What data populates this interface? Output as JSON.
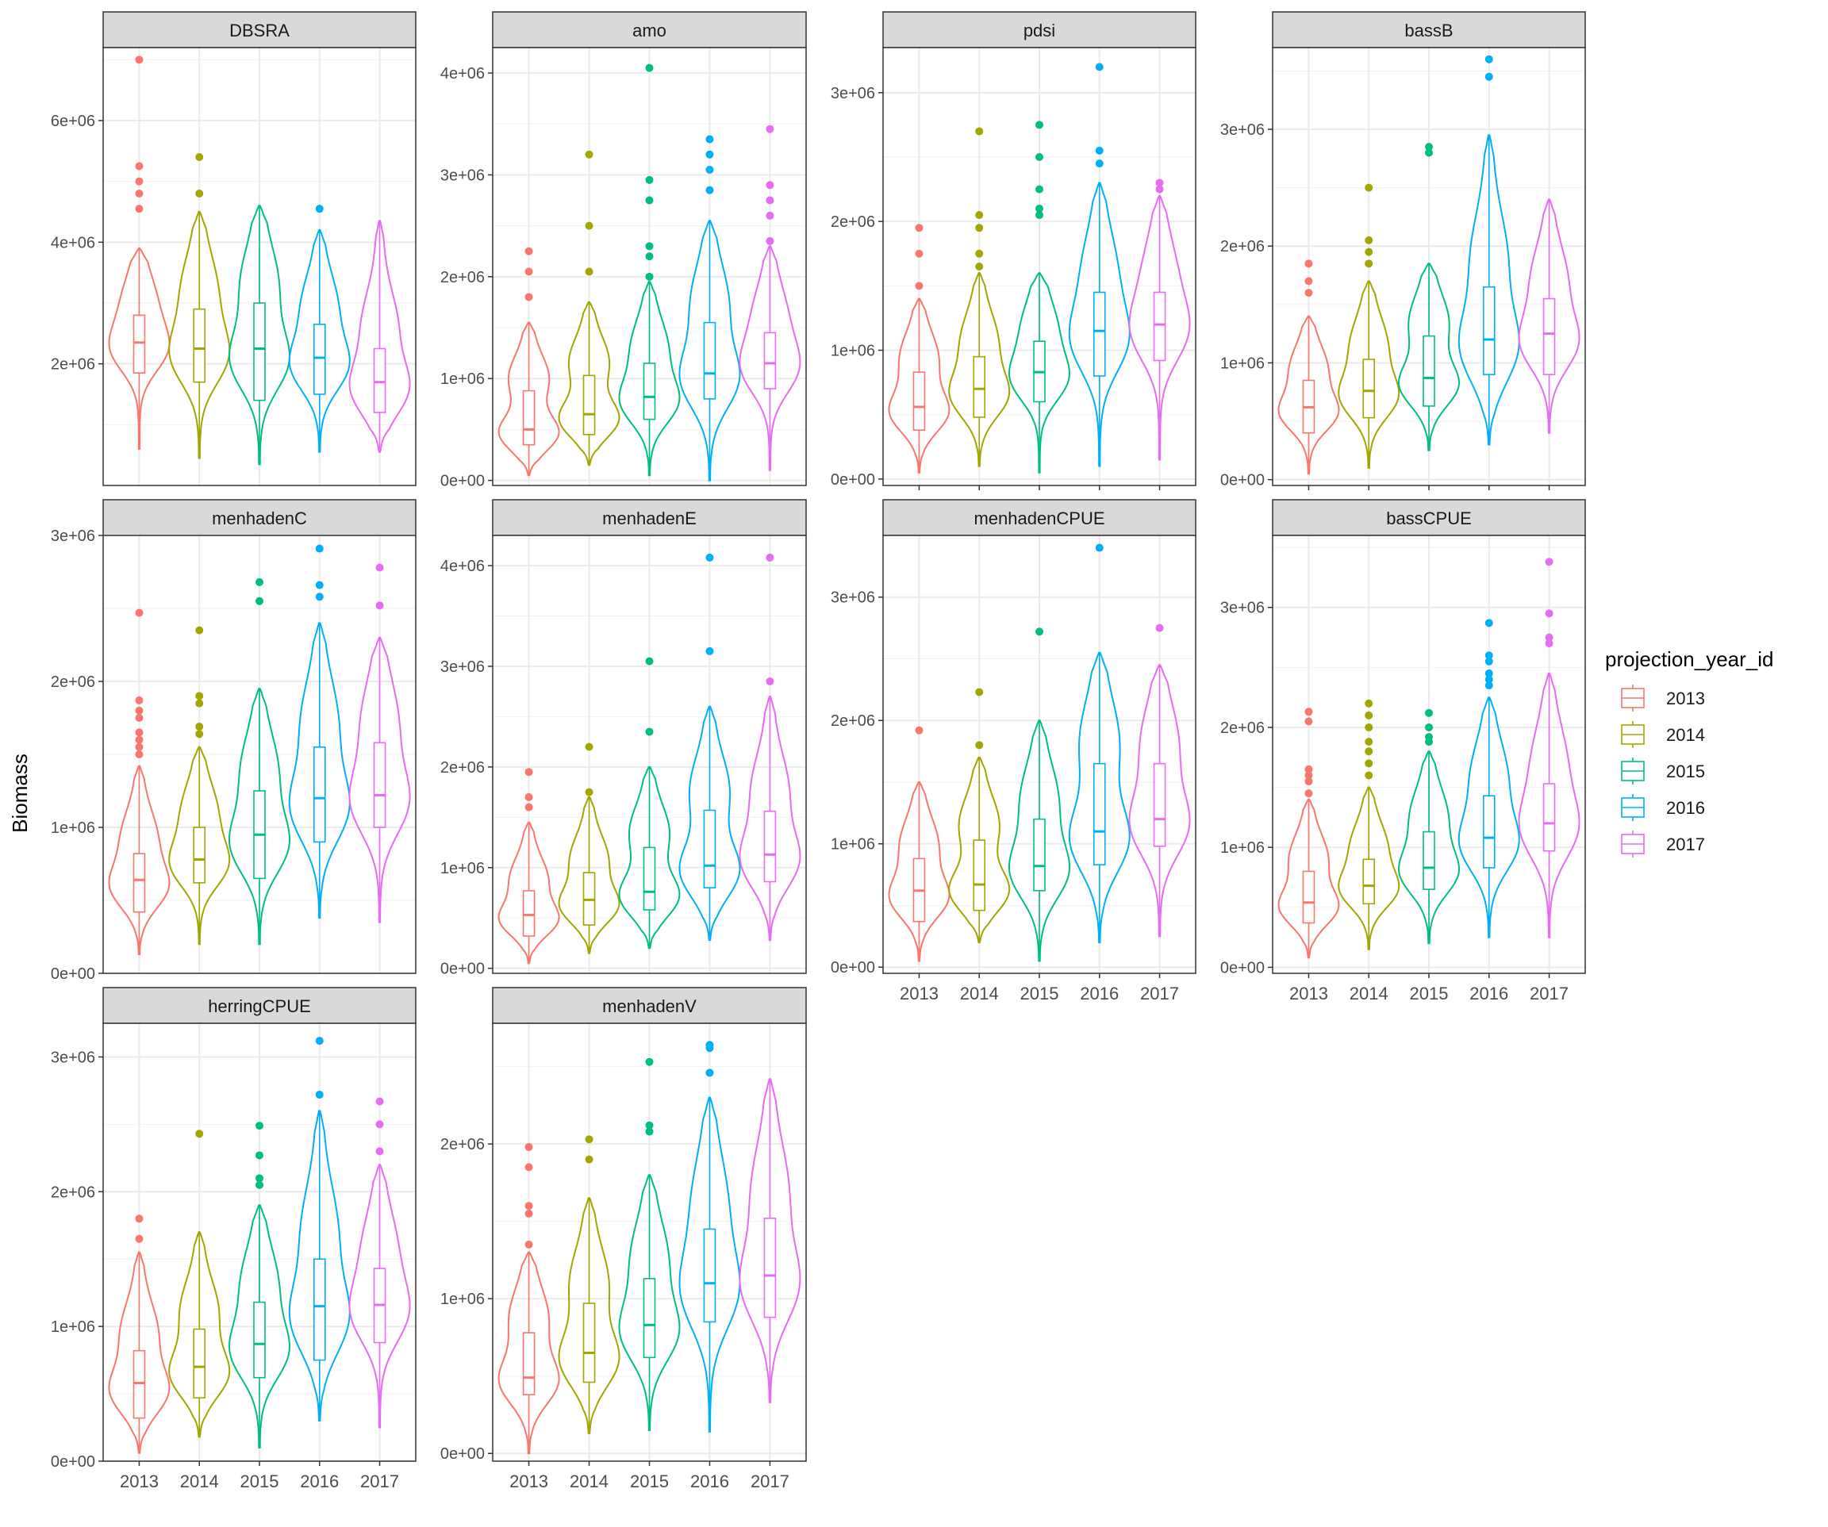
{
  "chart_data": {
    "type": "violin",
    "ylabel": "Biomass",
    "legend": {
      "title": "projection_year_id",
      "placement": "right",
      "entries": [
        "2013",
        "2014",
        "2015",
        "2016",
        "2017"
      ]
    },
    "categories": [
      "2013",
      "2014",
      "2015",
      "2016",
      "2017"
    ],
    "colors": [
      "#F8766D",
      "#A3A500",
      "#00BF7D",
      "#00B0F6",
      "#E76BF3"
    ],
    "grid": true,
    "panels": [
      {
        "name": "DBSRA",
        "ylim": [
          0,
          7200000
        ],
        "yticks": [
          2000000,
          4000000,
          6000000
        ],
        "ytick_labels": [
          "2e+06",
          "4e+06",
          "6e+06"
        ],
        "x_tick_labels_shown": false,
        "series": [
          {
            "year": "2013",
            "min": 600000,
            "q1": 1850000,
            "median": 2350000,
            "q3": 2800000,
            "max": 3900000,
            "outliers": [
              4550000,
              4800000,
              5000000,
              5250000,
              7000000
            ]
          },
          {
            "year": "2014",
            "min": 450000,
            "q1": 1700000,
            "median": 2250000,
            "q3": 2900000,
            "max": 4500000,
            "outliers": [
              4800000,
              5400000
            ]
          },
          {
            "year": "2015",
            "min": 350000,
            "q1": 1400000,
            "median": 2250000,
            "q3": 3000000,
            "max": 4600000,
            "outliers": []
          },
          {
            "year": "2016",
            "min": 550000,
            "q1": 1500000,
            "median": 2100000,
            "q3": 2650000,
            "max": 4200000,
            "outliers": [
              4550000
            ]
          },
          {
            "year": "2017",
            "min": 550000,
            "q1": 1200000,
            "median": 1700000,
            "q3": 2250000,
            "max": 4350000,
            "outliers": []
          }
        ]
      },
      {
        "name": "amo",
        "ylim": [
          -50000,
          4250000
        ],
        "yticks": [
          0,
          1000000,
          2000000,
          3000000,
          4000000
        ],
        "ytick_labels": [
          "0e+00",
          "1e+06",
          "2e+06",
          "3e+06",
          "4e+06"
        ],
        "x_tick_labels_shown": false,
        "series": [
          {
            "year": "2013",
            "min": 50000,
            "q1": 350000,
            "median": 500000,
            "q3": 880000,
            "max": 1550000,
            "outliers": [
              1800000,
              2050000,
              2250000
            ]
          },
          {
            "year": "2014",
            "min": 150000,
            "q1": 450000,
            "median": 650000,
            "q3": 1030000,
            "max": 1750000,
            "outliers": [
              2050000,
              2500000,
              3200000
            ]
          },
          {
            "year": "2015",
            "min": 50000,
            "q1": 600000,
            "median": 820000,
            "q3": 1150000,
            "max": 1950000,
            "outliers": [
              2000000,
              2200000,
              2300000,
              2750000,
              2950000,
              4050000
            ]
          },
          {
            "year": "2016",
            "min": 0,
            "q1": 800000,
            "median": 1050000,
            "q3": 1550000,
            "max": 2550000,
            "outliers": [
              2850000,
              3050000,
              3200000,
              3350000
            ]
          },
          {
            "year": "2017",
            "min": 100000,
            "q1": 900000,
            "median": 1150000,
            "q3": 1450000,
            "max": 2300000,
            "outliers": [
              2350000,
              2600000,
              2750000,
              2900000,
              3450000
            ]
          }
        ]
      },
      {
        "name": "pdsi",
        "ylim": [
          -50000,
          3350000
        ],
        "yticks": [
          0,
          1000000,
          2000000,
          3000000
        ],
        "ytick_labels": [
          "0e+00",
          "1e+06",
          "2e+06",
          "3e+06"
        ],
        "x_tick_labels_shown": true,
        "series": [
          {
            "year": "2013",
            "min": 50000,
            "q1": 380000,
            "median": 560000,
            "q3": 830000,
            "max": 1400000,
            "outliers": [
              1500000,
              1750000,
              1950000
            ]
          },
          {
            "year": "2014",
            "min": 100000,
            "q1": 480000,
            "median": 700000,
            "q3": 950000,
            "max": 1600000,
            "outliers": [
              1650000,
              1750000,
              1950000,
              2050000,
              2700000
            ]
          },
          {
            "year": "2015",
            "min": 50000,
            "q1": 600000,
            "median": 830000,
            "q3": 1070000,
            "max": 1600000,
            "outliers": [
              2050000,
              2100000,
              2250000,
              2500000,
              2750000
            ]
          },
          {
            "year": "2016",
            "min": 100000,
            "q1": 800000,
            "median": 1150000,
            "q3": 1450000,
            "max": 2300000,
            "outliers": [
              2450000,
              2550000,
              3200000
            ]
          },
          {
            "year": "2017",
            "min": 150000,
            "q1": 920000,
            "median": 1200000,
            "q3": 1450000,
            "max": 2200000,
            "outliers": [
              2250000,
              2300000
            ]
          }
        ]
      },
      {
        "name": "bassB",
        "ylim": [
          -50000,
          3700000
        ],
        "yticks": [
          0,
          1000000,
          2000000,
          3000000
        ],
        "ytick_labels": [
          "0e+00",
          "1e+06",
          "2e+06",
          "3e+06"
        ],
        "x_tick_labels_shown": true,
        "series": [
          {
            "year": "2013",
            "min": 50000,
            "q1": 400000,
            "median": 620000,
            "q3": 850000,
            "max": 1400000,
            "outliers": [
              1600000,
              1700000,
              1850000
            ]
          },
          {
            "year": "2014",
            "min": 100000,
            "q1": 530000,
            "median": 760000,
            "q3": 1030000,
            "max": 1700000,
            "outliers": [
              1850000,
              1950000,
              2050000,
              2500000
            ]
          },
          {
            "year": "2015",
            "min": 250000,
            "q1": 630000,
            "median": 870000,
            "q3": 1230000,
            "max": 1850000,
            "outliers": [
              2800000,
              2850000
            ]
          },
          {
            "year": "2016",
            "min": 300000,
            "q1": 900000,
            "median": 1200000,
            "q3": 1650000,
            "max": 2950000,
            "outliers": [
              3450000,
              3600000
            ]
          },
          {
            "year": "2017",
            "min": 400000,
            "q1": 900000,
            "median": 1250000,
            "q3": 1550000,
            "max": 2400000,
            "outliers": []
          }
        ]
      },
      {
        "name": "menhadenC",
        "ylim": [
          0,
          3000000
        ],
        "yticks": [
          0,
          1000000,
          2000000,
          3000000
        ],
        "ytick_labels": [
          "0e+00",
          "1e+06",
          "2e+06",
          "3e+06"
        ],
        "x_tick_labels_shown": false,
        "series": [
          {
            "year": "2013",
            "min": 130000,
            "q1": 420000,
            "median": 640000,
            "q3": 820000,
            "max": 1420000,
            "outliers": [
              1500000,
              1550000,
              1600000,
              1650000,
              1750000,
              1800000,
              1870000,
              2470000
            ]
          },
          {
            "year": "2014",
            "min": 200000,
            "q1": 620000,
            "median": 780000,
            "q3": 1000000,
            "max": 1550000,
            "outliers": [
              1640000,
              1690000,
              1850000,
              1900000,
              2350000
            ]
          },
          {
            "year": "2015",
            "min": 200000,
            "q1": 650000,
            "median": 950000,
            "q3": 1250000,
            "max": 1950000,
            "outliers": [
              2550000,
              2680000
            ]
          },
          {
            "year": "2016",
            "min": 380000,
            "q1": 900000,
            "median": 1200000,
            "q3": 1550000,
            "max": 2400000,
            "outliers": [
              2580000,
              2660000,
              2910000
            ]
          },
          {
            "year": "2017",
            "min": 350000,
            "q1": 1000000,
            "median": 1220000,
            "q3": 1580000,
            "max": 2300000,
            "outliers": [
              2520000,
              2780000
            ]
          }
        ]
      },
      {
        "name": "menhadenE",
        "ylim": [
          -50000,
          4300000
        ],
        "yticks": [
          0,
          1000000,
          2000000,
          3000000,
          4000000
        ],
        "ytick_labels": [
          "0e+00",
          "1e+06",
          "2e+06",
          "3e+06",
          "4e+06"
        ],
        "x_tick_labels_shown": false,
        "series": [
          {
            "year": "2013",
            "min": 50000,
            "q1": 320000,
            "median": 530000,
            "q3": 770000,
            "max": 1450000,
            "outliers": [
              1600000,
              1700000,
              1950000
            ]
          },
          {
            "year": "2014",
            "min": 150000,
            "q1": 430000,
            "median": 680000,
            "q3": 950000,
            "max": 1700000,
            "outliers": [
              1750000,
              2200000
            ]
          },
          {
            "year": "2015",
            "min": 200000,
            "q1": 580000,
            "median": 760000,
            "q3": 1200000,
            "max": 2000000,
            "outliers": [
              2350000,
              3050000
            ]
          },
          {
            "year": "2016",
            "min": 280000,
            "q1": 800000,
            "median": 1020000,
            "q3": 1570000,
            "max": 2600000,
            "outliers": [
              3150000,
              4080000
            ]
          },
          {
            "year": "2017",
            "min": 280000,
            "q1": 860000,
            "median": 1130000,
            "q3": 1560000,
            "max": 2700000,
            "outliers": [
              2850000,
              4080000
            ]
          }
        ]
      },
      {
        "name": "menhadenCPUE",
        "ylim": [
          -50000,
          3500000
        ],
        "yticks": [
          0,
          1000000,
          2000000,
          3000000
        ],
        "ytick_labels": [
          "0e+00",
          "1e+06",
          "2e+06",
          "3e+06"
        ],
        "x_tick_labels_shown": true,
        "series": [
          {
            "year": "2013",
            "min": 50000,
            "q1": 370000,
            "median": 620000,
            "q3": 880000,
            "max": 1500000,
            "outliers": [
              1920000
            ]
          },
          {
            "year": "2014",
            "min": 200000,
            "q1": 460000,
            "median": 670000,
            "q3": 1030000,
            "max": 1700000,
            "outliers": [
              1800000,
              2230000
            ]
          },
          {
            "year": "2015",
            "min": 50000,
            "q1": 620000,
            "median": 820000,
            "q3": 1200000,
            "max": 2000000,
            "outliers": [
              2720000
            ]
          },
          {
            "year": "2016",
            "min": 200000,
            "q1": 830000,
            "median": 1100000,
            "q3": 1650000,
            "max": 2550000,
            "outliers": [
              3400000
            ]
          },
          {
            "year": "2017",
            "min": 250000,
            "q1": 980000,
            "median": 1200000,
            "q3": 1650000,
            "max": 2450000,
            "outliers": [
              2750000
            ]
          }
        ]
      },
      {
        "name": "bassCPUE",
        "ylim": [
          -50000,
          3600000
        ],
        "yticks": [
          0,
          1000000,
          2000000,
          3000000
        ],
        "ytick_labels": [
          "0e+00",
          "1e+06",
          "2e+06",
          "3e+06"
        ],
        "x_tick_labels_shown": true,
        "series": [
          {
            "year": "2013",
            "min": 80000,
            "q1": 370000,
            "median": 540000,
            "q3": 800000,
            "max": 1400000,
            "outliers": [
              1450000,
              1550000,
              1600000,
              1650000,
              2050000,
              2130000
            ]
          },
          {
            "year": "2014",
            "min": 150000,
            "q1": 530000,
            "median": 680000,
            "q3": 900000,
            "max": 1500000,
            "outliers": [
              1600000,
              1700000,
              1800000,
              1880000,
              2000000,
              2100000,
              2200000
            ]
          },
          {
            "year": "2015",
            "min": 200000,
            "q1": 650000,
            "median": 830000,
            "q3": 1130000,
            "max": 1800000,
            "outliers": [
              1880000,
              1920000,
              2000000,
              2120000
            ]
          },
          {
            "year": "2016",
            "min": 250000,
            "q1": 830000,
            "median": 1080000,
            "q3": 1430000,
            "max": 2250000,
            "outliers": [
              2350000,
              2400000,
              2450000,
              2550000,
              2600000,
              2870000
            ]
          },
          {
            "year": "2017",
            "min": 250000,
            "q1": 970000,
            "median": 1200000,
            "q3": 1530000,
            "max": 2450000,
            "outliers": [
              2700000,
              2750000,
              2950000,
              3380000
            ]
          }
        ]
      },
      {
        "name": "herringCPUE",
        "ylim": [
          0,
          3250000
        ],
        "yticks": [
          0,
          1000000,
          2000000,
          3000000
        ],
        "ytick_labels": [
          "0e+00",
          "1e+06",
          "2e+06",
          "3e+06"
        ],
        "x_tick_labels_shown": true,
        "series": [
          {
            "year": "2013",
            "min": 60000,
            "q1": 320000,
            "median": 580000,
            "q3": 820000,
            "max": 1550000,
            "outliers": [
              1650000,
              1800000
            ]
          },
          {
            "year": "2014",
            "min": 180000,
            "q1": 470000,
            "median": 700000,
            "q3": 980000,
            "max": 1700000,
            "outliers": [
              2430000
            ]
          },
          {
            "year": "2015",
            "min": 100000,
            "q1": 620000,
            "median": 870000,
            "q3": 1180000,
            "max": 1900000,
            "outliers": [
              2050000,
              2100000,
              2270000,
              2490000
            ]
          },
          {
            "year": "2016",
            "min": 300000,
            "q1": 750000,
            "median": 1150000,
            "q3": 1500000,
            "max": 2600000,
            "outliers": [
              2720000,
              3120000
            ]
          },
          {
            "year": "2017",
            "min": 250000,
            "q1": 880000,
            "median": 1160000,
            "q3": 1430000,
            "max": 2200000,
            "outliers": [
              2300000,
              2500000,
              2670000
            ]
          }
        ]
      },
      {
        "name": "menhadenV",
        "ylim": [
          -50000,
          2780000
        ],
        "yticks": [
          0,
          1000000,
          2000000
        ],
        "ytick_labels": [
          "0e+00",
          "1e+06",
          "2e+06"
        ],
        "x_tick_labels_shown": true,
        "series": [
          {
            "year": "2013",
            "min": 0,
            "q1": 380000,
            "median": 490000,
            "q3": 780000,
            "max": 1300000,
            "outliers": [
              1350000,
              1550000,
              1600000,
              1850000,
              1980000
            ]
          },
          {
            "year": "2014",
            "min": 130000,
            "q1": 460000,
            "median": 650000,
            "q3": 970000,
            "max": 1650000,
            "outliers": [
              1900000,
              2030000
            ]
          },
          {
            "year": "2015",
            "min": 150000,
            "q1": 620000,
            "median": 830000,
            "q3": 1130000,
            "max": 1800000,
            "outliers": [
              2080000,
              2120000,
              2530000
            ]
          },
          {
            "year": "2016",
            "min": 140000,
            "q1": 850000,
            "median": 1100000,
            "q3": 1450000,
            "max": 2300000,
            "outliers": [
              2460000,
              2620000,
              2640000
            ]
          },
          {
            "year": "2017",
            "min": 330000,
            "q1": 880000,
            "median": 1150000,
            "q3": 1520000,
            "max": 2420000,
            "outliers": []
          }
        ]
      }
    ]
  }
}
